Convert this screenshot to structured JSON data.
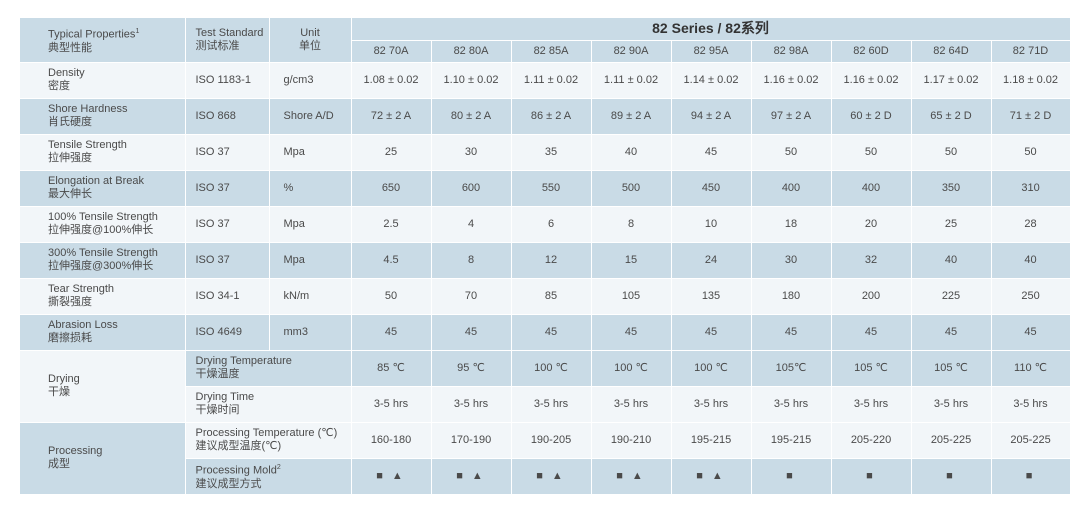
{
  "header": {
    "prop_en": "Typical Properties",
    "prop_sup": "1",
    "prop_zh": "典型性能",
    "std_en": "Test Standard",
    "std_zh": "测试标准",
    "unit_en": "Unit",
    "unit_zh": "单位",
    "series_title": "82 Series / 82系列",
    "grades": [
      "82 70A",
      "82 80A",
      "82 85A",
      "82 90A",
      "82 95A",
      "82 98A",
      "82 60D",
      "82 64D",
      "82 71D"
    ]
  },
  "rows": [
    {
      "en": "Density",
      "zh": "密度",
      "std": "ISO 1183-1",
      "unit": "g/cm3",
      "values": [
        "1.08 ± 0.02",
        "1.10 ± 0.02",
        "1.11 ± 0.02",
        "1.11 ± 0.02",
        "1.14 ± 0.02",
        "1.16 ± 0.02",
        "1.16 ± 0.02",
        "1.17 ± 0.02",
        "1.18 ± 0.02"
      ]
    },
    {
      "en": "Shore Hardness",
      "zh": "肖氏硬度",
      "std": "ISO 868",
      "unit": "Shore A/D",
      "values": [
        "72 ± 2 A",
        "80 ± 2 A",
        "86 ± 2 A",
        "89 ± 2 A",
        "94 ± 2 A",
        "97 ± 2 A",
        "60 ± 2 D",
        "65 ± 2 D",
        "71 ± 2 D"
      ]
    },
    {
      "en": "Tensile Strength",
      "zh": "拉伸强度",
      "std": "ISO 37",
      "unit": "Mpa",
      "values": [
        "25",
        "30",
        "35",
        "40",
        "45",
        "50",
        "50",
        "50",
        "50"
      ]
    },
    {
      "en": "Elongation at Break",
      "zh": "最大伸长",
      "std": "ISO 37",
      "unit": "%",
      "values": [
        "650",
        "600",
        "550",
        "500",
        "450",
        "400",
        "400",
        "350",
        "310"
      ]
    },
    {
      "en": "100% Tensile Strength",
      "zh": "拉伸强度@100%伸长",
      "std": "ISO 37",
      "unit": "Mpa",
      "values": [
        "2.5",
        "4",
        "6",
        "8",
        "10",
        "18",
        "20",
        "25",
        "28"
      ]
    },
    {
      "en": "300% Tensile Strength",
      "zh": "拉伸强度@300%伸长",
      "std": "ISO 37",
      "unit": "Mpa",
      "values": [
        "4.5",
        "8",
        "12",
        "15",
        "24",
        "30",
        "32",
        "40",
        "40"
      ]
    },
    {
      "en": "Tear Strength",
      "zh": "撕裂强度",
      "std": "ISO 34-1",
      "unit": "kN/m",
      "values": [
        "50",
        "70",
        "85",
        "105",
        "135",
        "180",
        "200",
        "225",
        "250"
      ]
    },
    {
      "en": "Abrasion Loss",
      "zh": "磨擦损耗",
      "std": "ISO 4649",
      "unit": "mm3",
      "values": [
        "45",
        "45",
        "45",
        "45",
        "45",
        "45",
        "45",
        "45",
        "45"
      ]
    }
  ],
  "drying": {
    "en": "Drying",
    "zh": "干燥",
    "temp": {
      "en": "Drying Temperature",
      "zh": "干燥温度",
      "values": [
        "85 ℃",
        "95 ℃",
        "100 ℃",
        "100 ℃",
        "100 ℃",
        "105℃",
        "105 ℃",
        "105 ℃",
        "110 ℃"
      ]
    },
    "time": {
      "en": "Drying Time",
      "zh": "干燥时间",
      "values": [
        "3-5 hrs",
        "3-5 hrs",
        "3-5 hrs",
        "3-5 hrs",
        "3-5 hrs",
        "3-5 hrs",
        "3-5 hrs",
        "3-5 hrs",
        "3-5 hrs"
      ]
    }
  },
  "processing": {
    "en": "Processing",
    "zh": "成型",
    "temp": {
      "en": "Processing Temperature (℃)",
      "zh": "建议成型温度(℃)",
      "values": [
        "160-180",
        "170-190",
        "190-205",
        "190-210",
        "195-215",
        "195-215",
        "205-220",
        "205-225",
        "205-225"
      ]
    },
    "mold": {
      "en": "Processing Mold",
      "sup": "2",
      "zh": "建议成型方式",
      "values": [
        "■ ▲",
        "■ ▲",
        "■ ▲",
        "■ ▲",
        "■ ▲",
        "■",
        "■",
        "■",
        "■"
      ]
    }
  }
}
